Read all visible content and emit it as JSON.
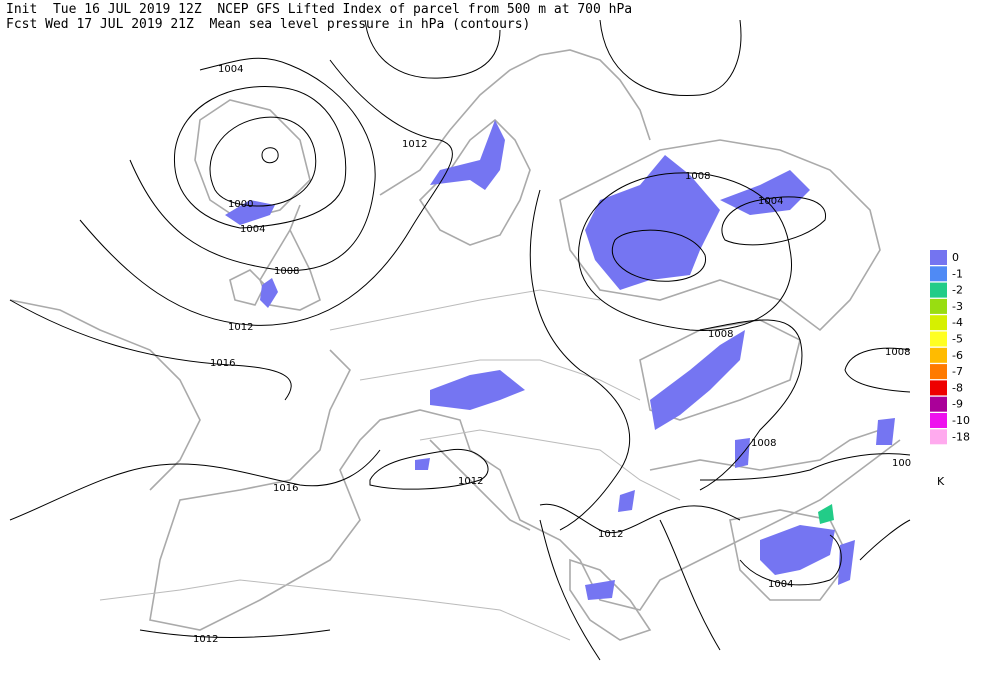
{
  "header": {
    "line1": "Init  Tue 16 JUL 2019 12Z  NCEP GFS Lifted Index of parcel from 500 m at 700 hPa",
    "line2": "Fcst Wed 17 JUL 2019 21Z  Mean sea level pressure in hPa (contours)"
  },
  "contours": {
    "labels": [
      "1004",
      "1012",
      "1000",
      "1004",
      "1008",
      "1012",
      "1016",
      "1008",
      "1004",
      "1008",
      "1008",
      "1016",
      "1012",
      "1008",
      "1012",
      "1004",
      "1012",
      "100"
    ]
  },
  "legend": {
    "entries": [
      {
        "label": "0",
        "color": "#7474f0"
      },
      {
        "label": "-1",
        "color": "#4f8af5"
      },
      {
        "label": "-2",
        "color": "#22cc88"
      },
      {
        "label": "-3",
        "color": "#99dd11"
      },
      {
        "label": "-4",
        "color": "#d6f000"
      },
      {
        "label": "-5",
        "color": "#ffff22"
      },
      {
        "label": "-6",
        "color": "#ffbb00"
      },
      {
        "label": "-7",
        "color": "#ff7a00"
      },
      {
        "label": "-8",
        "color": "#ee0000"
      },
      {
        "label": "-9",
        "color": "#aa0099"
      },
      {
        "label": "-10",
        "color": "#ee11ee"
      },
      {
        "label": "-18",
        "color": "#ffaaee"
      }
    ],
    "unit": "K"
  }
}
